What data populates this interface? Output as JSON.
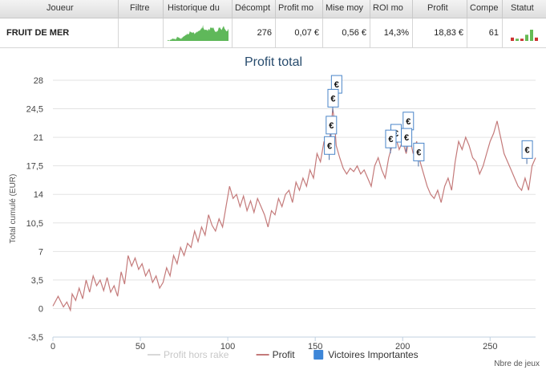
{
  "table": {
    "headers": [
      "Joueur",
      "Filtre",
      "Historique du",
      "Décompt",
      "Profit mo",
      "Mise moy",
      "ROI mo",
      "Profit",
      "Compe",
      "Statut"
    ],
    "row": {
      "player": "FRUIT DE MER",
      "filtre": "",
      "decompte": "276",
      "profit_moyen": "0,07 €",
      "mise_moyenne": "0,56 €",
      "roi_moyen": "14,3%",
      "profit": "18,83 €",
      "compe": "61"
    },
    "status_bars": [
      {
        "color": "#cc3333",
        "value": 0.3
      },
      {
        "color": "#66bb55",
        "value": 0.2
      },
      {
        "color": "#cc3333",
        "value": 0.2
      },
      {
        "color": "#66bb55",
        "value": 0.55
      },
      {
        "color": "#66bb55",
        "value": 1.0
      },
      {
        "color": "#cc3333",
        "value": 0.3
      }
    ]
  },
  "chart_data": {
    "type": "line",
    "title": "Profit total",
    "ylabel": "Total cumulé (EUR)",
    "xlabel": "Nbre de jeux",
    "xlim": [
      0,
      276
    ],
    "ylim": [
      -3.5,
      28
    ],
    "x_ticks": [
      0,
      50,
      100,
      150,
      200,
      250
    ],
    "y_ticks": [
      "-3,5",
      "0",
      "3,5",
      "7",
      "10,5",
      "14",
      "17,5",
      "21",
      "24,5",
      "28"
    ],
    "y_tick_values": [
      -3.5,
      0,
      3.5,
      7,
      10.5,
      14,
      17.5,
      21,
      24.5,
      28
    ],
    "legend": [
      {
        "name": "Profit hors rake",
        "color": "#d8d8d8",
        "kind": "line"
      },
      {
        "name": "Profit",
        "color": "#c47a7a",
        "kind": "line"
      },
      {
        "name": "Victoires Importantes",
        "color": "#3d86d8",
        "kind": "box"
      }
    ],
    "series": [
      {
        "name": "Profit",
        "color": "#c47a7a",
        "x": [
          0,
          3,
          6,
          8,
          10,
          11,
          13,
          15,
          17,
          19,
          21,
          23,
          25,
          27,
          29,
          31,
          33,
          35,
          37,
          39,
          41,
          43,
          45,
          47,
          49,
          51,
          53,
          55,
          57,
          59,
          61,
          63,
          65,
          67,
          69,
          71,
          73,
          75,
          77,
          79,
          81,
          83,
          85,
          87,
          89,
          91,
          93,
          95,
          97,
          99,
          101,
          103,
          105,
          107,
          109,
          111,
          113,
          115,
          117,
          119,
          121,
          123,
          125,
          127,
          129,
          131,
          133,
          135,
          137,
          139,
          141,
          143,
          145,
          147,
          149,
          151,
          153,
          155,
          157,
          159,
          160,
          161,
          162,
          164,
          166,
          168,
          170,
          172,
          174,
          176,
          178,
          180,
          182,
          184,
          186,
          188,
          190,
          192,
          194,
          196,
          198,
          200,
          202,
          204,
          206,
          208,
          210,
          212,
          214,
          216,
          218,
          220,
          222,
          224,
          226,
          228,
          230,
          232,
          234,
          236,
          238,
          240,
          242,
          244,
          246,
          248,
          250,
          252,
          254,
          256,
          258,
          260,
          262,
          264,
          266,
          268,
          270,
          272,
          274,
          276
        ],
        "y": [
          0.3,
          1.5,
          0.2,
          0.8,
          -0.2,
          1.8,
          1.0,
          2.5,
          1.2,
          3.5,
          2.0,
          4.0,
          2.8,
          3.5,
          2.2,
          3.8,
          2.0,
          2.8,
          1.5,
          4.5,
          3.0,
          6.5,
          5.2,
          6.2,
          4.8,
          5.5,
          4.0,
          4.8,
          3.2,
          4.0,
          2.5,
          3.2,
          5.0,
          4.0,
          6.5,
          5.5,
          7.5,
          6.5,
          8.0,
          7.5,
          9.5,
          8.2,
          10.0,
          9.0,
          11.5,
          10.2,
          9.5,
          11.0,
          10.0,
          12.5,
          15.0,
          13.5,
          14.0,
          12.5,
          13.8,
          12.0,
          13.2,
          11.8,
          13.5,
          12.5,
          11.5,
          10.0,
          12.0,
          11.5,
          13.5,
          12.5,
          14.0,
          14.5,
          13.0,
          15.5,
          14.5,
          16.0,
          15.0,
          17.0,
          16.0,
          19.0,
          18.0,
          20.5,
          19.0,
          22.0,
          24.5,
          23.0,
          20.0,
          18.5,
          17.2,
          16.5,
          17.2,
          16.8,
          17.5,
          16.5,
          17.0,
          16.0,
          15.0,
          17.5,
          18.5,
          17.0,
          16.0,
          18.5,
          20.0,
          21.0,
          19.5,
          20.5,
          19.0,
          21.0,
          19.0,
          20.5,
          18.0,
          16.5,
          15.0,
          14.0,
          13.5,
          14.5,
          13.0,
          15.0,
          16.0,
          14.5,
          18.0,
          20.5,
          19.5,
          21.0,
          20.0,
          18.5,
          18.0,
          16.5,
          17.5,
          19.0,
          20.5,
          21.5,
          23.0,
          21.0,
          19.0,
          18.0,
          17.0,
          16.0,
          15.0,
          14.5,
          16.0,
          14.5,
          17.5,
          18.5
        ]
      }
    ],
    "markers": [
      {
        "x": 162,
        "y": 27.5,
        "label": "€"
      },
      {
        "x": 160,
        "y": 25.8,
        "label": "€"
      },
      {
        "x": 159,
        "y": 22.5,
        "label": "€"
      },
      {
        "x": 158,
        "y": 20.0,
        "label": "€"
      },
      {
        "x": 196,
        "y": 21.5,
        "label": "€"
      },
      {
        "x": 193,
        "y": 20.8,
        "label": "€"
      },
      {
        "x": 203,
        "y": 23.0,
        "label": "€"
      },
      {
        "x": 202,
        "y": 21.0,
        "label": "€"
      },
      {
        "x": 209,
        "y": 19.2,
        "label": "€"
      },
      {
        "x": 271,
        "y": 19.5,
        "label": "€"
      }
    ]
  }
}
